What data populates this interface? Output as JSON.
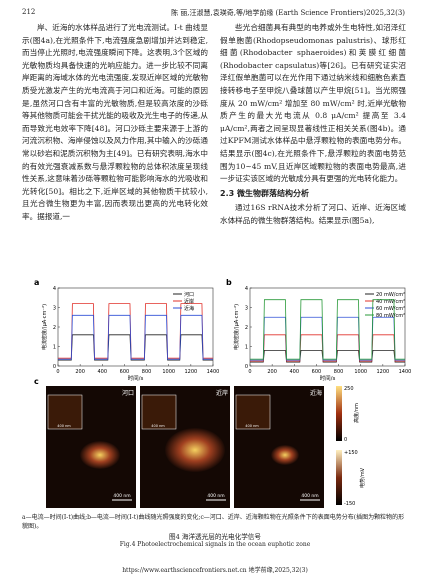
{
  "header": {
    "page_number": "212",
    "running_title": "陈 丽,汪淑慧,袁瑛奇,等/地学前缘 (Earth Science Frontiers)2025,32(3)"
  },
  "body": {
    "left": [
      "岸、近海的水体样品进行了光电流测试。I-t 曲线显示(图4a),在光照条件下,电流强度急剧增加并达到稳定,而当停止光照时,电流强度瞬间下降。这表明,3个区域的光敏物质均具备快速的光响应能力。进一步比较不同离岸距离的海域水体的光电流强度,发现近岸区域的光敏物质受光激发产生的光电流高于河口和近海。可能的原因是,虽然河口含有丰富的光敏物质,但是较高浓度的沙砾等其他物质可能会干扰光能的吸收及光生电子的传递,从而导致光电效率下降[48]。河口沙砾主要来源于上游的河流沉积物、海岸侵蚀以及风力作用,其中输入的沙砾通常以砂岩和泥质沉积物为主[49]。已有研究表明,海水中的有效光强衰减系数与悬浮颗粒物的总体积浓度呈现线性关系,这意味着沙砾等颗粒物可能影响海水的光吸收和光转化[50]。相比之下,近岸区域的其他物质干扰较小,且光合微生物更为丰富,因而表现出更高的光电转化效率。据报道,一"
    ],
    "right": [
      "些光合细菌具有典型的电养或外生电特性,如沼泽红假单胞菌(Rhodopseudomonas palustris)、球形红细菌(Rhodobacter sphaeroides)和荚膜红细菌(Rhodobacter capsulatus)等[26]。已有研究证实沼泽红假单胞菌可以在光作用下通过纳米线和细胞色素直接转移电子至甲烷八叠球菌以产生甲烷[51]。当光照强度从 20 mW/cm² 增加至 80 mW/cm² 时,近岸光敏物质产生的最大光电流从 0.8 μA/cm² 提高至 3.4 μA/cm²,两者之间呈现显著线性正相关关系(图4b)。通过KPFM测试水体样品中悬浮颗粒物的表面电势分布。结果显示(图4c),在光照条件下,悬浮颗粒的表面电势范围为10~45 mV,且近岸区域颗粒物的表面电势最高,进一步证实该区域的光敏成分具有更强的光电转化能力。"
    ],
    "section_heading": "2.3 微生物群落结构分析",
    "right_after": "通过16S rRNA技术分析了河口、近岸、近海区域水体样品的微生物群落结构。结果显示(图5a),"
  },
  "figure": {
    "panels": [
      {
        "label": "a",
        "type": "line",
        "xlabel": "时间/s",
        "ylabel": "电流密度/(μA·cm⁻²)",
        "x": [
          0,
          120,
          130,
          320,
          330,
          450,
          460,
          650,
          660,
          780,
          790,
          980,
          990,
          1100,
          1110,
          1300,
          1310,
          1400
        ],
        "xlim": [
          0,
          1400
        ],
        "xticks": [
          0,
          200,
          400,
          600,
          800,
          1000,
          1200,
          1400
        ],
        "ylim": [
          0,
          4
        ],
        "yticks": [
          0,
          1,
          2,
          3,
          4
        ],
        "series": [
          {
            "name": "河口",
            "color": "#222222",
            "values": [
              0.3,
              0.3,
              1.6,
              1.6,
              0.3,
              0.3,
              1.6,
              1.6,
              0.3,
              0.3,
              1.6,
              1.6,
              0.3,
              0.3,
              1.6,
              1.6,
              0.3,
              0.3
            ]
          },
          {
            "name": "近岸",
            "color": "#e0302a",
            "values": [
              0.4,
              0.4,
              3.2,
              3.2,
              0.4,
              0.4,
              3.2,
              3.2,
              0.4,
              0.4,
              3.2,
              3.2,
              0.4,
              0.4,
              3.2,
              3.2,
              0.4,
              0.4
            ]
          },
          {
            "name": "近海",
            "color": "#2d4fd6",
            "values": [
              0.35,
              0.35,
              2.6,
              2.6,
              0.35,
              0.35,
              2.6,
              2.6,
              0.35,
              0.35,
              2.6,
              2.6,
              0.35,
              0.35,
              2.6,
              2.6,
              0.35,
              0.35
            ]
          }
        ]
      },
      {
        "label": "b",
        "type": "line",
        "xlabel": "时间/s",
        "ylabel": "电流密度/(μA·cm⁻²)",
        "x": [
          0,
          120,
          130,
          320,
          330,
          450,
          460,
          650,
          660,
          780,
          790,
          980,
          990,
          1100,
          1110,
          1300,
          1310,
          1400
        ],
        "xlim": [
          0,
          1400
        ],
        "xticks": [
          0,
          200,
          400,
          600,
          800,
          1000,
          1200,
          1400
        ],
        "ylim": [
          0,
          4
        ],
        "yticks": [
          0,
          1,
          2,
          3,
          4
        ],
        "series": [
          {
            "name": "20 mW/cm²",
            "color": "#222222",
            "values": [
              0.2,
              0.2,
              0.8,
              0.8,
              0.2,
              0.2,
              0.8,
              0.8,
              0.2,
              0.2,
              0.8,
              0.8,
              0.2,
              0.2,
              0.8,
              0.8,
              0.2,
              0.2
            ]
          },
          {
            "name": "40 mW/cm²",
            "color": "#e0302a",
            "values": [
              0.25,
              0.25,
              1.6,
              1.6,
              0.25,
              0.25,
              1.6,
              1.6,
              0.25,
              0.25,
              1.6,
              1.6,
              0.25,
              0.25,
              1.6,
              1.6,
              0.25,
              0.25
            ]
          },
          {
            "name": "60 mW/cm²",
            "color": "#2d4fd6",
            "values": [
              0.3,
              0.3,
              2.5,
              2.5,
              0.3,
              0.3,
              2.5,
              2.5,
              0.3,
              0.3,
              2.5,
              2.5,
              0.3,
              0.3,
              2.5,
              2.5,
              0.3,
              0.3
            ]
          },
          {
            "name": "80 mW/cm²",
            "color": "#2a9a3a",
            "values": [
              0.35,
              0.35,
              3.4,
              3.4,
              0.35,
              0.35,
              3.4,
              3.4,
              0.35,
              0.35,
              3.4,
              3.4,
              0.35,
              0.35,
              3.4,
              3.4,
              0.35,
              0.35
            ]
          }
        ]
      }
    ],
    "panel_c": {
      "label": "c",
      "sites": [
        "河口",
        "近岸",
        "近海"
      ],
      "scale_bar": "400 nm",
      "height_bar": {
        "max": "250",
        "min": "0",
        "title": "高度/nm"
      },
      "potential_bar": {
        "max": "+150",
        "min": "-150",
        "title": "电势/mV"
      }
    },
    "caption_note": "a—电流—时间(I-t)曲线;b—电流—时间(I-t)曲线随光照强度的变化;c—河口、近岸、近海颗粒物在光照条件下的表面电势分布(插图为颗粒物的形貌图)。",
    "caption_cn": "图4 海洋透光层的光电化学信号",
    "caption_en": "Fig.4 Photoelectrochemical signals in the ocean euphotic zone"
  },
  "footer": "https://www.earthsciencefrontiers.net.cn 地学前缘,2025,32(3)"
}
